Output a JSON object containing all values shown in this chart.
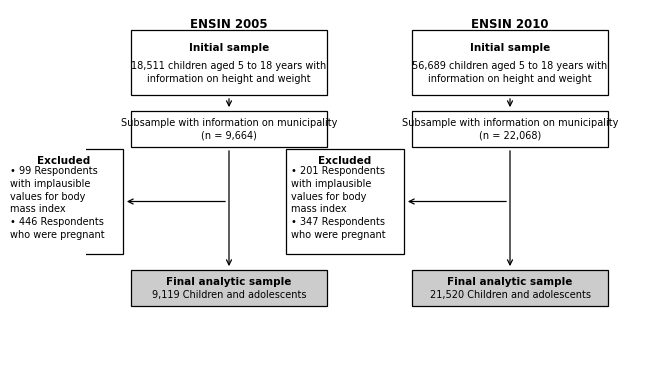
{
  "title_2005": "ENSIN 2005",
  "title_2010": "ENSIN 2010",
  "box1_2005_bold": "Initial sample",
  "box1_2005_text": "18,511 children aged 5 to 18 years with\ninformation on height and weight",
  "box2_2005_text": "Subsample with information on municipality\n(n = 9,664)",
  "box3_2005_bold": "Excluded",
  "box3_2005_text": "• 99 Respondents\nwith implausible\nvalues for body\nmass index\n• 446 Respondents\nwho were pregnant",
  "box4_2005_bold": "Final analytic sample",
  "box4_2005_text": "9,119 Children and adolescents",
  "box1_2010_bold": "Initial sample",
  "box1_2010_text": "56,689 children aged 5 to 18 years with\ninformation on height and weight",
  "box2_2010_text": "Subsample with information on municipality\n(n = 22,068)",
  "box3_2010_bold": "Excluded",
  "box3_2010_text": "• 201 Respondents\nwith implausible\nvalues for body\nmass index\n• 347 Respondents\nwho were pregnant",
  "box4_2010_bold": "Final analytic sample",
  "box4_2010_text": "21,520 Children and adolescents",
  "bg_color": "#ffffff",
  "box_edge_color": "#000000",
  "box_fill_white": "#ffffff",
  "box_fill_gray": "#cccccc",
  "text_color": "#000000",
  "title_fontsize": 8.5,
  "label_fontsize": 7.0,
  "bold_fontsize": 7.5
}
